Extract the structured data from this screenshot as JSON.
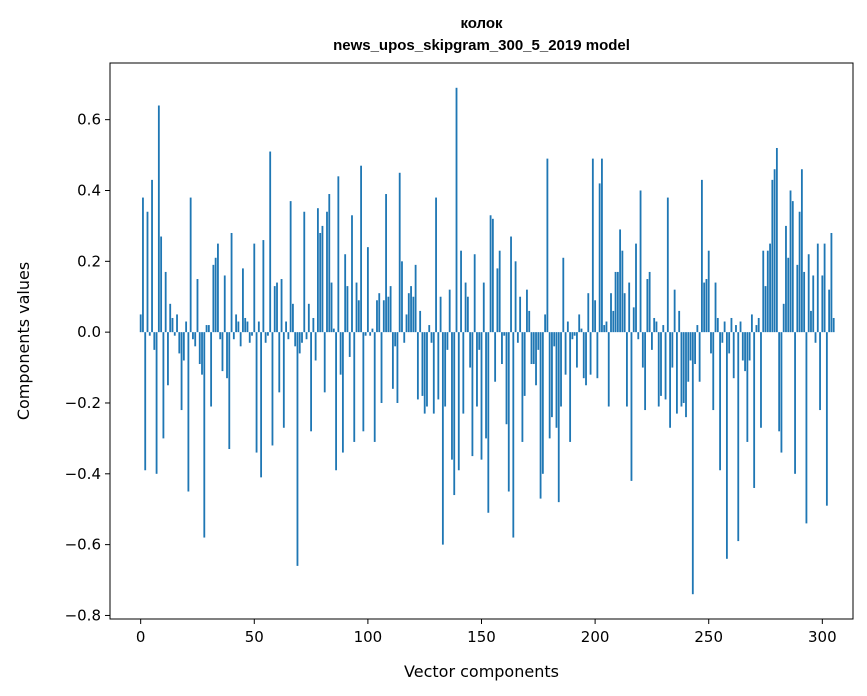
{
  "chart_data": {
    "type": "bar",
    "title": "колок\nnews_upos_skipgram_300_5_2019 model",
    "title_lines": [
      "колок",
      "news_upos_skipgram_300_5_2019 model"
    ],
    "xlabel": "Vector components",
    "ylabel": "Components values",
    "xlim": [
      -13.5,
      313.5
    ],
    "ylim": [
      -0.81,
      0.76
    ],
    "xticks": [
      0,
      50,
      100,
      150,
      200,
      250,
      300
    ],
    "xtick_labels": [
      "0",
      "50",
      "100",
      "150",
      "200",
      "250",
      "300"
    ],
    "yticks": [
      -0.8,
      -0.6,
      -0.4,
      -0.2,
      0.0,
      0.2,
      0.4,
      0.6
    ],
    "ytick_labels": [
      "−0.8",
      "−0.6",
      "−0.4",
      "−0.2",
      "0.0",
      "0.2",
      "0.4",
      "0.6"
    ],
    "grid": false,
    "bar_color": "#1f77b4",
    "values": [
      0.05,
      0.38,
      -0.39,
      0.34,
      -0.01,
      0.43,
      -0.05,
      -0.4,
      0.64,
      0.27,
      -0.3,
      0.17,
      -0.15,
      0.08,
      0.04,
      -0.01,
      0.05,
      -0.06,
      -0.22,
      -0.08,
      0.03,
      -0.45,
      0.38,
      -0.02,
      -0.04,
      0.15,
      -0.09,
      -0.12,
      -0.58,
      0.02,
      0.02,
      -0.21,
      0.19,
      0.21,
      0.25,
      -0.02,
      -0.11,
      0.16,
      -0.13,
      -0.33,
      0.28,
      -0.02,
      0.05,
      0.03,
      -0.04,
      0.18,
      0.04,
      0.03,
      -0.03,
      -0.01,
      0.25,
      -0.34,
      0.03,
      -0.41,
      0.26,
      -0.03,
      -0.01,
      0.51,
      -0.32,
      0.13,
      0.14,
      -0.17,
      0.15,
      -0.27,
      0.03,
      -0.02,
      0.37,
      0.08,
      -0.04,
      -0.66,
      -0.06,
      -0.03,
      0.34,
      -0.02,
      0.08,
      -0.28,
      0.04,
      -0.08,
      0.35,
      0.28,
      0.3,
      -0.17,
      0.34,
      0.39,
      0.14,
      0.01,
      -0.39,
      0.44,
      -0.12,
      -0.34,
      0.22,
      0.13,
      -0.07,
      0.33,
      -0.31,
      0.14,
      0.09,
      0.47,
      -0.28,
      -0.01,
      0.24,
      -0.01,
      0.01,
      -0.31,
      0.09,
      0.11,
      -0.2,
      0.09,
      0.39,
      0.1,
      0.13,
      -0.16,
      -0.04,
      -0.2,
      0.45,
      0.2,
      -0.03,
      0.05,
      0.11,
      0.13,
      0.1,
      0.19,
      -0.19,
      0.06,
      -0.18,
      -0.23,
      -0.21,
      0.02,
      -0.03,
      -0.23,
      0.38,
      -0.19,
      0.1,
      -0.6,
      -0.21,
      -0.05,
      0.12,
      -0.36,
      -0.46,
      0.69,
      -0.39,
      0.23,
      -0.23,
      0.14,
      0.1,
      -0.1,
      -0.35,
      0.22,
      -0.21,
      -0.05,
      -0.36,
      0.14,
      -0.3,
      -0.51,
      0.33,
      0.32,
      -0.14,
      0.18,
      0.23,
      -0.09,
      -0.01,
      -0.26,
      -0.45,
      0.27,
      -0.58,
      0.2,
      -0.03,
      0.1,
      -0.31,
      -0.18,
      0.12,
      0.06,
      -0.09,
      -0.09,
      -0.15,
      -0.05,
      -0.47,
      -0.4,
      0.05,
      0.49,
      -0.3,
      -0.24,
      -0.04,
      -0.27,
      -0.48,
      -0.21,
      0.21,
      -0.12,
      0.03,
      -0.31,
      -0.02,
      -0.01,
      -0.1,
      0.05,
      0.01,
      -0.13,
      -0.15,
      0.11,
      -0.12,
      0.49,
      0.09,
      -0.13,
      0.42,
      0.49,
      0.02,
      0.03,
      -0.21,
      0.11,
      0.06,
      0.17,
      0.17,
      0.29,
      0.23,
      0.11,
      -0.21,
      0.14,
      -0.42,
      0.07,
      0.25,
      -0.02,
      0.4,
      -0.1,
      -0.22,
      0.15,
      0.17,
      -0.05,
      0.04,
      0.03,
      -0.21,
      -0.18,
      0.02,
      -0.19,
      0.38,
      -0.27,
      -0.1,
      0.12,
      -0.23,
      0.06,
      -0.21,
      -0.2,
      -0.24,
      -0.14,
      -0.08,
      -0.74,
      -0.09,
      0.02,
      -0.14,
      0.43,
      0.14,
      0.15,
      0.23,
      -0.06,
      -0.22,
      0.14,
      0.04,
      -0.39,
      -0.03,
      0.03,
      -0.64,
      -0.06,
      0.04,
      -0.13,
      0.02,
      -0.59,
      0.03,
      -0.08,
      -0.11,
      -0.31,
      -0.08,
      0.05,
      -0.44,
      0.02,
      0.04,
      -0.27,
      0.23,
      0.13,
      0.23,
      0.25,
      0.43,
      0.46,
      0.52,
      -0.28,
      -0.34,
      0.08,
      0.3,
      0.21,
      0.4,
      0.37,
      -0.4,
      0.19,
      0.34,
      0.46,
      0.17,
      -0.54,
      0.22,
      0.06,
      0.16,
      -0.03,
      0.25,
      -0.22,
      0.16,
      0.25,
      -0.49,
      0.12,
      0.28,
      0.04
    ]
  }
}
